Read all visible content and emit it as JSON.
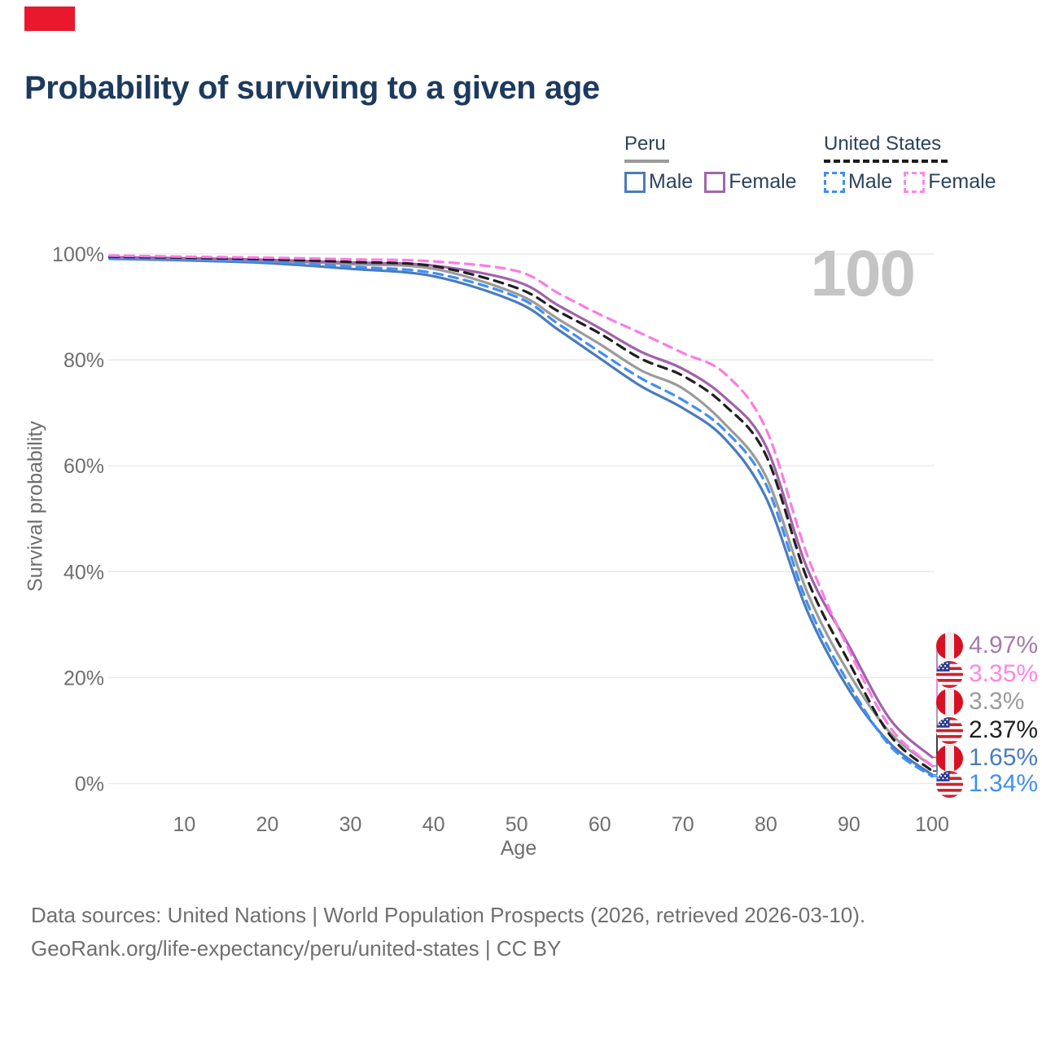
{
  "brand": {
    "logo_color": "#e9182c"
  },
  "title": {
    "text": "Probability of surviving to a given age",
    "color": "#1d3a5e"
  },
  "legend": {
    "text_color": "#2c425d",
    "groups": [
      {
        "label": "Peru",
        "underline_style": "solid",
        "underline_color": "#9a9a9a",
        "items": [
          {
            "label": "Male",
            "color": "#4b7bbd",
            "dashed": false
          },
          {
            "label": "Female",
            "color": "#a366a8",
            "dashed": false
          }
        ]
      },
      {
        "label": "United States",
        "underline_style": "dashed",
        "underline_color": "#1b1b1b",
        "items": [
          {
            "label": "Male",
            "color": "#418ef5",
            "dashed": true
          },
          {
            "label": "Female",
            "color": "#ff85e5",
            "dashed": true
          }
        ]
      }
    ]
  },
  "watermark": {
    "text": "100",
    "color": "#c4c4c4"
  },
  "axes": {
    "y_title": "Survival probability",
    "x_title": "Age",
    "y_ticks": [
      "100%",
      "80%",
      "60%",
      "40%",
      "20%",
      "0%"
    ],
    "x_ticks": [
      "10",
      "20",
      "30",
      "40",
      "50",
      "60",
      "70",
      "80",
      "90",
      "100"
    ],
    "tick_color": "#6e6e6e",
    "grid_color": "#eaeaea"
  },
  "chart_data": {
    "type": "line",
    "title": "Probability of surviving to a given age",
    "xlabel": "Age",
    "ylabel": "Survival probability",
    "xlim": [
      0,
      100
    ],
    "ylim": [
      0,
      100
    ],
    "grid": true,
    "legend_position": "top-right",
    "x": [
      1,
      10,
      20,
      30,
      40,
      50,
      55,
      60,
      65,
      70,
      75,
      80,
      85,
      90,
      95,
      100
    ],
    "series": [
      {
        "key": "peru-male",
        "name": "Peru Male",
        "country": "Peru",
        "sex": "Male",
        "style": "solid",
        "color": "#4b7bbd",
        "values": [
          99.1,
          98.8,
          98.3,
          97.2,
          95.8,
          90.9,
          85.7,
          80.3,
          75.0,
          70.9,
          65.2,
          54.0,
          32.5,
          17.7,
          7.5,
          1.65
        ],
        "end_value_label": "1.65%"
      },
      {
        "key": "peru-female",
        "name": "Peru Female",
        "country": "Peru",
        "sex": "Female",
        "style": "solid",
        "color": "#a163a9",
        "values": [
          99.4,
          99.2,
          98.9,
          98.4,
          97.8,
          94.8,
          90.3,
          86.0,
          81.5,
          78.3,
          73.0,
          63.7,
          40.5,
          26.0,
          12.0,
          4.97
        ],
        "end_value_label": "4.97%"
      },
      {
        "key": "peru-total",
        "name": "Peru",
        "country": "Peru",
        "sex": "Both",
        "style": "solid",
        "color": "#9b9b9b",
        "values": [
          99.3,
          99.1,
          98.7,
          98.1,
          97.2,
          92.5,
          87.7,
          83.0,
          78.0,
          74.6,
          68.0,
          58.0,
          36.0,
          20.8,
          9.5,
          3.3
        ],
        "end_value_label": "3.3%"
      },
      {
        "key": "us-male",
        "name": "United States Male",
        "country": "United States",
        "sex": "Male",
        "style": "dashed",
        "color": "#418ef5",
        "values": [
          99.2,
          99.0,
          98.5,
          97.6,
          96.4,
          91.9,
          86.8,
          81.5,
          76.5,
          72.4,
          66.8,
          56.5,
          34.0,
          18.8,
          7.0,
          1.34
        ],
        "end_value_label": "1.34%"
      },
      {
        "key": "us-female",
        "name": "United States Female",
        "country": "United States",
        "sex": "Female",
        "style": "dashed",
        "color": "#fb7ce3",
        "values": [
          99.7,
          99.5,
          99.3,
          99.0,
          98.6,
          96.8,
          92.6,
          88.6,
          85.0,
          81.3,
          77.5,
          67.0,
          43.0,
          25.2,
          10.5,
          3.35
        ],
        "end_value_label": "3.35%"
      },
      {
        "key": "us-total",
        "name": "United States",
        "country": "United States",
        "sex": "Both",
        "style": "dashed",
        "color": "#1f1f1f",
        "values": [
          99.5,
          99.3,
          99.0,
          98.5,
          97.7,
          93.6,
          89.2,
          85.0,
          80.2,
          77.0,
          71.5,
          62.0,
          38.5,
          22.9,
          9.0,
          2.37
        ],
        "end_value_label": "2.37%"
      }
    ]
  },
  "end_labels": [
    {
      "series": "peru-female",
      "flag": "peru",
      "text": "4.97%",
      "color": "#a57ba9"
    },
    {
      "series": "us-female",
      "flag": "us",
      "text": "3.35%",
      "color": "#ff85e5"
    },
    {
      "series": "peru-total",
      "flag": "peru",
      "text": "3.3%",
      "color": "#9b9b9b"
    },
    {
      "series": "us-total",
      "flag": "us",
      "text": "2.37%",
      "color": "#1f1f1f"
    },
    {
      "series": "peru-male",
      "flag": "peru",
      "text": "1.65%",
      "color": "#4b7bbd"
    },
    {
      "series": "us-male",
      "flag": "us",
      "text": "1.34%",
      "color": "#418ef5"
    }
  ],
  "footer": {
    "line1": "Data sources: United Nations | World Population Prospects (2026, retrieved 2026-03-10).",
    "line2": "GeoRank.org/life-expectancy/peru/united-states | CC BY",
    "color": "#6f6f6f"
  }
}
